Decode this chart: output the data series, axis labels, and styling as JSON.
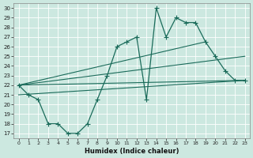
{
  "xlabel": "Humidex (Indice chaleur)",
  "background_color": "#cce8e0",
  "line_color": "#1a6b5a",
  "grid_color": "#b0d8ce",
  "xlim": [
    -0.5,
    23.5
  ],
  "ylim": [
    16.5,
    30.5
  ],
  "xticks": [
    0,
    1,
    2,
    3,
    4,
    5,
    6,
    7,
    8,
    9,
    10,
    11,
    12,
    13,
    14,
    15,
    16,
    17,
    18,
    19,
    20,
    21,
    22,
    23
  ],
  "yticks": [
    17,
    18,
    19,
    20,
    21,
    22,
    23,
    24,
    25,
    26,
    27,
    28,
    29,
    30
  ],
  "zigzag_x": [
    0,
    1,
    2,
    3,
    4,
    5,
    6,
    7,
    8,
    9,
    10,
    11,
    12,
    13,
    14,
    15,
    16,
    17,
    18,
    19,
    20,
    21,
    22,
    23
  ],
  "zigzag_y": [
    22,
    21,
    20.5,
    18,
    18,
    17,
    17,
    18,
    20.5,
    23,
    26,
    26.5,
    27,
    20.5,
    30,
    27,
    29,
    28.5,
    28.5,
    26.5,
    25,
    23.5,
    22.5,
    22.5
  ],
  "line1_x": [
    0,
    19
  ],
  "line1_y": [
    22,
    26.5
  ],
  "line2_x": [
    0,
    23
  ],
  "line2_y": [
    22,
    25
  ],
  "line3_x": [
    0,
    23
  ],
  "line3_y": [
    22,
    22.5
  ],
  "line4_x": [
    0,
    23
  ],
  "line4_y": [
    21,
    22.5
  ]
}
